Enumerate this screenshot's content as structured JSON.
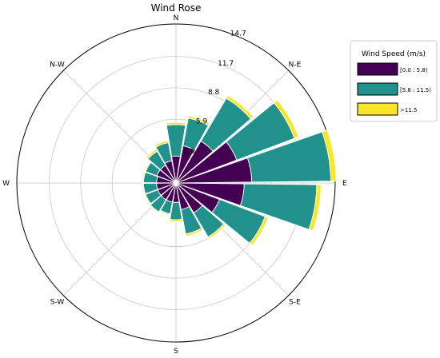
{
  "chart_data": {
    "type": "windrose",
    "title": "Wind Rose",
    "directions": [
      "N",
      "N-E",
      "E",
      "S-E",
      "S",
      "S-W",
      "W",
      "N-W"
    ],
    "radial_ticks": [
      2.9,
      5.9,
      8.8,
      11.7,
      14.7
    ],
    "r_max": 14.7,
    "grid": true,
    "legend": {
      "title": "Wind Speed (m/s)",
      "placement": "right",
      "labels": [
        "[0.0 : 5.8)",
        "[5.8 : 11.5)",
        ">11.5"
      ]
    },
    "colors": [
      "#440154",
      "#21918c",
      "#fde725"
    ],
    "sector_width_deg": 20,
    "sectors": [
      {
        "angle": 0,
        "values": [
          2.5,
          2.9,
          0.2
        ]
      },
      {
        "angle": 20,
        "values": [
          3.5,
          2.6,
          0.2
        ]
      },
      {
        "angle": 40,
        "values": [
          4.5,
          4.6,
          0.3
        ]
      },
      {
        "angle": 60,
        "values": [
          6.0,
          5.7,
          0.4
        ]
      },
      {
        "angle": 80,
        "values": [
          7.0,
          7.3,
          0.5
        ]
      },
      {
        "angle": 100,
        "values": [
          6.3,
          6.7,
          0.4
        ]
      },
      {
        "angle": 120,
        "values": [
          4.3,
          4.5,
          0.3
        ]
      },
      {
        "angle": 140,
        "values": [
          3.2,
          2.6,
          0.2
        ]
      },
      {
        "angle": 160,
        "values": [
          2.5,
          2.3,
          0.2
        ]
      },
      {
        "angle": 180,
        "values": [
          1.8,
          1.6,
          0.2
        ]
      },
      {
        "angle": 200,
        "values": [
          1.8,
          1.1,
          0.1
        ]
      },
      {
        "angle": 220,
        "values": [
          1.8,
          1.3,
          0.1
        ]
      },
      {
        "angle": 240,
        "values": [
          1.8,
          1.2,
          0.1
        ]
      },
      {
        "angle": 260,
        "values": [
          1.8,
          1.2,
          0.1
        ]
      },
      {
        "angle": 280,
        "values": [
          1.8,
          1.2,
          0.1
        ]
      },
      {
        "angle": 300,
        "values": [
          1.9,
          1.1,
          0.1
        ]
      },
      {
        "angle": 320,
        "values": [
          1.9,
          1.5,
          0.2
        ]
      },
      {
        "angle": 340,
        "values": [
          2.1,
          1.7,
          0.2
        ]
      }
    ]
  }
}
